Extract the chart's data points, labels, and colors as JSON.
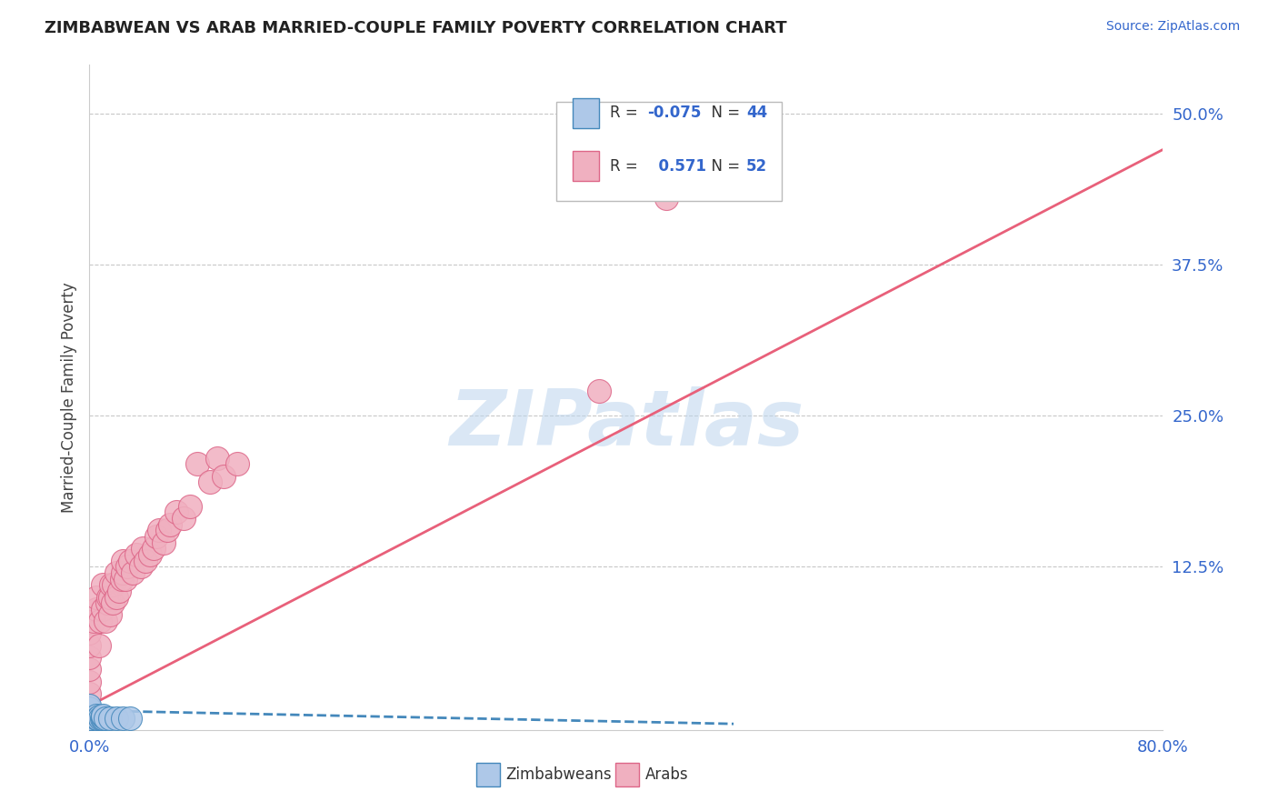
{
  "title": "ZIMBABWEAN VS ARAB MARRIED-COUPLE FAMILY POVERTY CORRELATION CHART",
  "source": "Source: ZipAtlas.com",
  "ylabel": "Married-Couple Family Poverty",
  "xlim": [
    0.0,
    0.8
  ],
  "ylim": [
    -0.01,
    0.54
  ],
  "ytick_positions": [
    0.0,
    0.125,
    0.25,
    0.375,
    0.5
  ],
  "ytick_labels": [
    "",
    "12.5%",
    "25.0%",
    "37.5%",
    "50.0%"
  ],
  "background_color": "#ffffff",
  "grid_color": "#c8c8c8",
  "zim_color": "#aec8e8",
  "arab_color": "#f0b0c0",
  "zim_edge_color": "#4488bb",
  "arab_edge_color": "#dd6688",
  "zim_line_color": "#4488bb",
  "arab_line_color": "#e8607a",
  "watermark": "ZIPatlas",
  "zim_scatter_x": [
    0.0,
    0.0,
    0.0,
    0.0,
    0.0,
    0.0,
    0.0,
    0.0,
    0.0,
    0.0,
    0.0,
    0.0,
    0.0,
    0.0,
    0.0,
    0.0,
    0.0,
    0.0,
    0.0,
    0.0,
    0.0,
    0.0,
    0.0,
    0.0,
    0.0,
    0.0,
    0.0,
    0.0,
    0.0,
    0.0,
    0.005,
    0.005,
    0.006,
    0.007,
    0.008,
    0.009,
    0.01,
    0.01,
    0.01,
    0.012,
    0.015,
    0.02,
    0.025,
    0.03
  ],
  "zim_scatter_y": [
    0.0,
    0.0,
    0.0,
    0.0,
    0.0,
    0.0,
    0.0,
    0.0,
    0.0,
    0.0,
    0.0,
    0.0,
    0.0,
    0.0,
    0.0,
    0.0,
    0.0,
    0.002,
    0.002,
    0.003,
    0.003,
    0.004,
    0.004,
    0.005,
    0.005,
    0.006,
    0.006,
    0.007,
    0.008,
    0.01,
    0.0,
    0.002,
    0.0,
    0.001,
    0.0,
    0.0,
    0.0,
    0.001,
    0.002,
    0.0,
    0.0,
    0.0,
    0.0,
    0.0
  ],
  "arab_scatter_x": [
    0.0,
    0.0,
    0.0,
    0.0,
    0.0,
    0.0,
    0.003,
    0.005,
    0.005,
    0.007,
    0.008,
    0.01,
    0.01,
    0.012,
    0.013,
    0.014,
    0.015,
    0.015,
    0.016,
    0.017,
    0.018,
    0.02,
    0.02,
    0.022,
    0.024,
    0.025,
    0.025,
    0.027,
    0.028,
    0.03,
    0.032,
    0.035,
    0.038,
    0.04,
    0.042,
    0.045,
    0.048,
    0.05,
    0.052,
    0.055,
    0.058,
    0.06,
    0.065,
    0.07,
    0.075,
    0.08,
    0.09,
    0.095,
    0.1,
    0.11,
    0.38,
    0.43
  ],
  "arab_scatter_y": [
    0.02,
    0.03,
    0.04,
    0.05,
    0.06,
    0.07,
    0.08,
    0.09,
    0.1,
    0.06,
    0.08,
    0.09,
    0.11,
    0.08,
    0.095,
    0.1,
    0.085,
    0.1,
    0.11,
    0.095,
    0.11,
    0.1,
    0.12,
    0.105,
    0.115,
    0.12,
    0.13,
    0.115,
    0.125,
    0.13,
    0.12,
    0.135,
    0.125,
    0.14,
    0.13,
    0.135,
    0.14,
    0.15,
    0.155,
    0.145,
    0.155,
    0.16,
    0.17,
    0.165,
    0.175,
    0.21,
    0.195,
    0.215,
    0.2,
    0.21,
    0.27,
    0.43
  ],
  "zim_line_x": [
    0.0,
    0.48
  ],
  "zim_line_y": [
    0.006,
    -0.005
  ],
  "arab_line_x": [
    0.0,
    0.8
  ],
  "arab_line_y": [
    0.01,
    0.47
  ]
}
